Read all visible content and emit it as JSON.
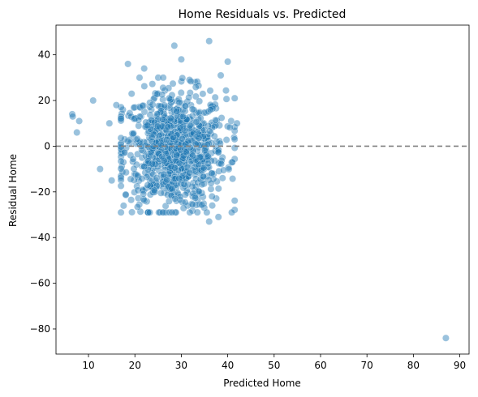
{
  "chart_data": {
    "type": "scatter",
    "title": "Home Residuals vs. Predicted",
    "xlabel": "Predicted Home",
    "ylabel": "Residual Home",
    "xlim": [
      3,
      92
    ],
    "ylim": [
      -91,
      53
    ],
    "xticks": [
      10,
      20,
      30,
      40,
      50,
      60,
      70,
      80,
      90
    ],
    "yticks": [
      -80,
      -60,
      -40,
      -20,
      0,
      20,
      40
    ],
    "reference_line": {
      "y": 0,
      "style": "dashed",
      "color": "#808080"
    },
    "marker_color": "#1f77b4",
    "marker_alpha": 0.45,
    "grid": false,
    "outliers": [
      {
        "x": 6.5,
        "y": 14
      },
      {
        "x": 6.6,
        "y": 13
      },
      {
        "x": 8.0,
        "y": 11
      },
      {
        "x": 7.5,
        "y": 6
      },
      {
        "x": 11.0,
        "y": 20
      },
      {
        "x": 12.5,
        "y": -10
      },
      {
        "x": 14.5,
        "y": 10
      },
      {
        "x": 15.0,
        "y": -15
      },
      {
        "x": 16.0,
        "y": 18
      },
      {
        "x": 18.5,
        "y": 36
      },
      {
        "x": 21.0,
        "y": 30
      },
      {
        "x": 22.0,
        "y": 34
      },
      {
        "x": 28.5,
        "y": 44
      },
      {
        "x": 30.0,
        "y": 38
      },
      {
        "x": 36.0,
        "y": 46
      },
      {
        "x": 40.0,
        "y": 37
      },
      {
        "x": 38.5,
        "y": 31
      },
      {
        "x": 36.0,
        "y": -33
      },
      {
        "x": 38.0,
        "y": -31
      },
      {
        "x": 28.0,
        "y": -29
      },
      {
        "x": 35.5,
        "y": -29
      },
      {
        "x": 41.5,
        "y": 21
      },
      {
        "x": 42.0,
        "y": 10
      },
      {
        "x": 41.0,
        "y": -7
      },
      {
        "x": 87.0,
        "y": -84
      }
    ],
    "cluster": {
      "count": 900,
      "x_center": 28.5,
      "x_spread": 5.5,
      "x_range": [
        17,
        41.5
      ],
      "y_center": -2,
      "y_spread": 13,
      "y_range": [
        -29,
        30
      ]
    }
  }
}
